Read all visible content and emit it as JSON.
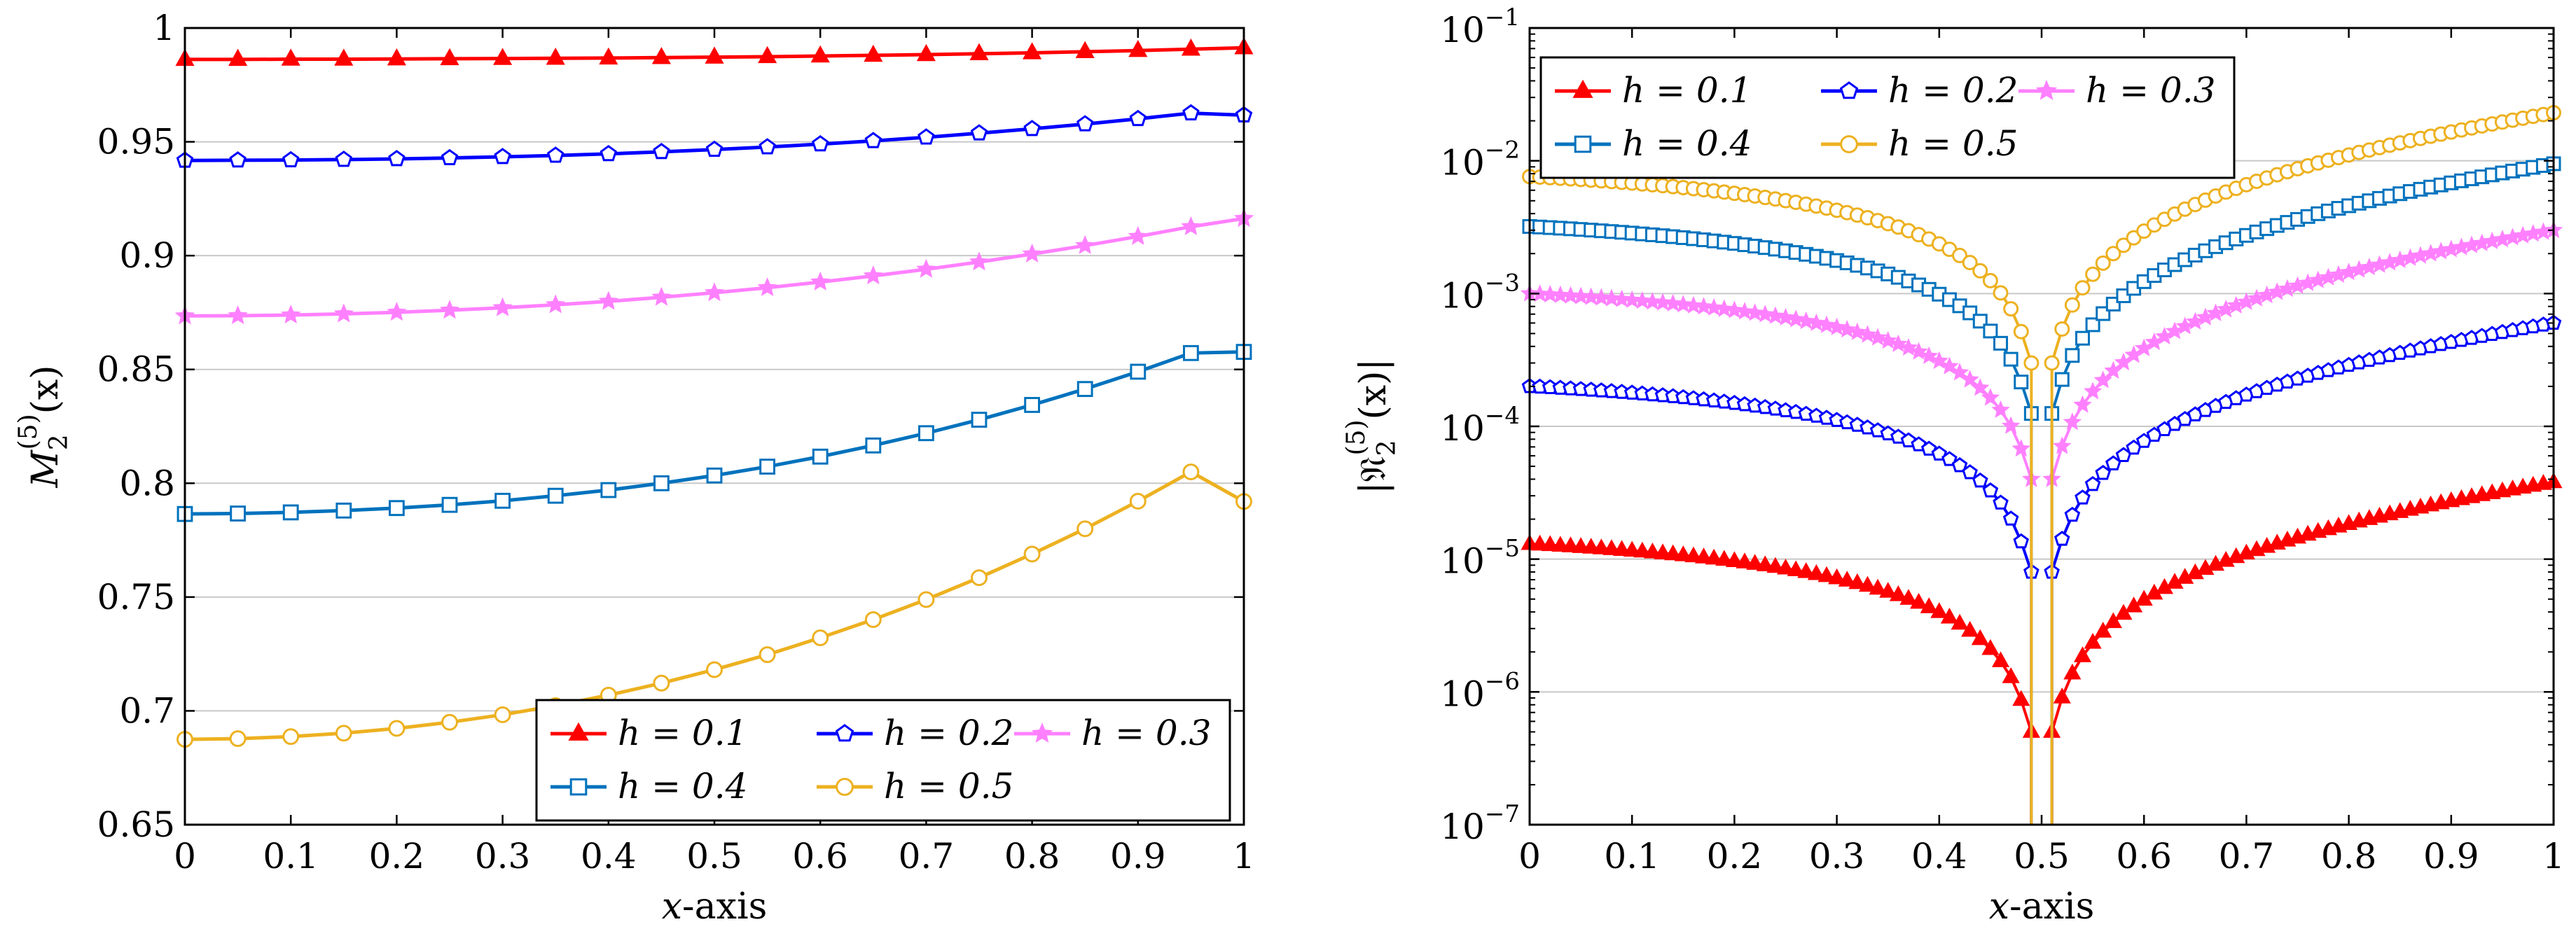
{
  "chart_data": [
    {
      "type": "line",
      "title": "",
      "xlabel": "x-axis",
      "ylabel": "M_2^(5)(x)",
      "ylabel_main": "M",
      "ylabel_sub": "2",
      "ylabel_sup": "(5)",
      "ylabel_arg": "(x)",
      "xlim": [
        0,
        1
      ],
      "ylim": [
        0.65,
        1
      ],
      "yscale": "linear",
      "grid": "horizontal",
      "legend_position": "bottom-right",
      "xticks": [
        "0",
        "0.1",
        "0.2",
        "0.3",
        "0.4",
        "0.5",
        "0.6",
        "0.7",
        "0.8",
        "0.9",
        "1"
      ],
      "yticks": [
        "0.65",
        "0.7",
        "0.75",
        "0.8",
        "0.85",
        "0.9",
        "0.95",
        "1"
      ],
      "x": [
        0,
        0.05,
        0.1,
        0.15,
        0.2,
        0.25,
        0.3,
        0.35,
        0.4,
        0.45,
        0.5,
        0.55,
        0.6,
        0.65,
        0.7,
        0.75,
        0.8,
        0.85,
        0.9,
        0.95,
        1
      ],
      "series": [
        {
          "name": "h = 0.1",
          "label": "h = 0.1",
          "color": "#ff0000",
          "marker": "triangle",
          "values": [
            0.9862,
            0.9862,
            0.9863,
            0.9863,
            0.9864,
            0.9865,
            0.9866,
            0.9867,
            0.9868,
            0.987,
            0.9872,
            0.9874,
            0.9877,
            0.988,
            0.9883,
            0.9887,
            0.9891,
            0.9896,
            0.9901,
            0.9907,
            0.9913
          ]
        },
        {
          "name": "h = 0.2",
          "label": "h = 0.2",
          "color": "#0000ff",
          "marker": "pentagon",
          "values": [
            0.9418,
            0.9419,
            0.942,
            0.9422,
            0.9425,
            0.9429,
            0.9434,
            0.944,
            0.9447,
            0.9456,
            0.9466,
            0.9477,
            0.949,
            0.9504,
            0.952,
            0.9538,
            0.9557,
            0.9578,
            0.9601,
            0.9626,
            0.9617
          ]
        },
        {
          "name": "h = 0.3",
          "label": "h = 0.3",
          "color": "#ff80ff",
          "marker": "star",
          "values": [
            0.8735,
            0.8736,
            0.8739,
            0.8744,
            0.8751,
            0.876,
            0.8771,
            0.8784,
            0.8799,
            0.8817,
            0.8837,
            0.8859,
            0.8884,
            0.8911,
            0.894,
            0.8972,
            0.9007,
            0.9044,
            0.9084,
            0.9127,
            0.9163
          ]
        },
        {
          "name": "h = 0.4",
          "label": "h = 0.4",
          "color": "#0072bd",
          "marker": "square",
          "values": [
            0.7865,
            0.7867,
            0.7872,
            0.788,
            0.7891,
            0.7905,
            0.7923,
            0.7945,
            0.797,
            0.8,
            0.8034,
            0.8073,
            0.8117,
            0.8166,
            0.822,
            0.8279,
            0.8344,
            0.8414,
            0.849,
            0.8572,
            0.8577
          ]
        },
        {
          "name": "h = 0.5",
          "label": "h = 0.5",
          "color": "#edb120",
          "marker": "circle",
          "values": [
            0.6875,
            0.6878,
            0.6887,
            0.6902,
            0.6923,
            0.695,
            0.6983,
            0.7023,
            0.7069,
            0.7122,
            0.7181,
            0.7247,
            0.7321,
            0.7401,
            0.7489,
            0.7585,
            0.7689,
            0.78,
            0.7921,
            0.805,
            0.792
          ]
        }
      ]
    },
    {
      "type": "line",
      "title": "",
      "xlabel": "x-axis",
      "ylabel": "|R_2^(5)(x)|",
      "ylabel_main": "𝔑",
      "ylabel_sub": "2",
      "ylabel_sup": "(5)",
      "ylabel_arg": "(x)",
      "xlim": [
        0,
        1
      ],
      "ylim": [
        1e-07,
        0.1
      ],
      "yscale": "log",
      "grid": "horizontal",
      "legend_position": "top-left",
      "xticks": [
        "0",
        "0.1",
        "0.2",
        "0.3",
        "0.4",
        "0.5",
        "0.6",
        "0.7",
        "0.8",
        "0.9",
        "1"
      ],
      "yticks": [
        {
          "base": "10",
          "exp": "−7"
        },
        {
          "base": "10",
          "exp": "−6"
        },
        {
          "base": "10",
          "exp": "−5"
        },
        {
          "base": "10",
          "exp": "−4"
        },
        {
          "base": "10",
          "exp": "−3"
        },
        {
          "base": "10",
          "exp": "−2"
        },
        {
          "base": "10",
          "exp": "−1"
        }
      ],
      "x_spacing": 0.01,
      "series": [
        {
          "name": "h = 0.1",
          "label": "h = 0.1",
          "color": "#ff0000",
          "marker": "triangle",
          "left_value_at_0": 1.3e-05,
          "dip_value": 5e-07,
          "right_value_at_1": 3.8e-05
        },
        {
          "name": "h = 0.2",
          "label": "h = 0.2",
          "color": "#0000ff",
          "marker": "pentagon",
          "left_value_at_0": 0.0002,
          "dip_value": 8e-06,
          "right_value_at_1": 0.0006
        },
        {
          "name": "h = 0.3",
          "label": "h = 0.3",
          "color": "#ff80ff",
          "marker": "star",
          "left_value_at_0": 0.001,
          "dip_value": 4e-05,
          "right_value_at_1": 0.003
        },
        {
          "name": "h = 0.4",
          "label": "h = 0.4",
          "color": "#0072bd",
          "marker": "square",
          "left_value_at_0": 0.0032,
          "dip_value": 0.000125,
          "right_value_at_1": 0.0095
        },
        {
          "name": "h = 0.5",
          "label": "h = 0.5",
          "color": "#edb120",
          "marker": "circle",
          "left_value_at_0": 0.0076,
          "dip_value": 0.0003,
          "right_value_at_1": 0.023
        }
      ]
    }
  ]
}
